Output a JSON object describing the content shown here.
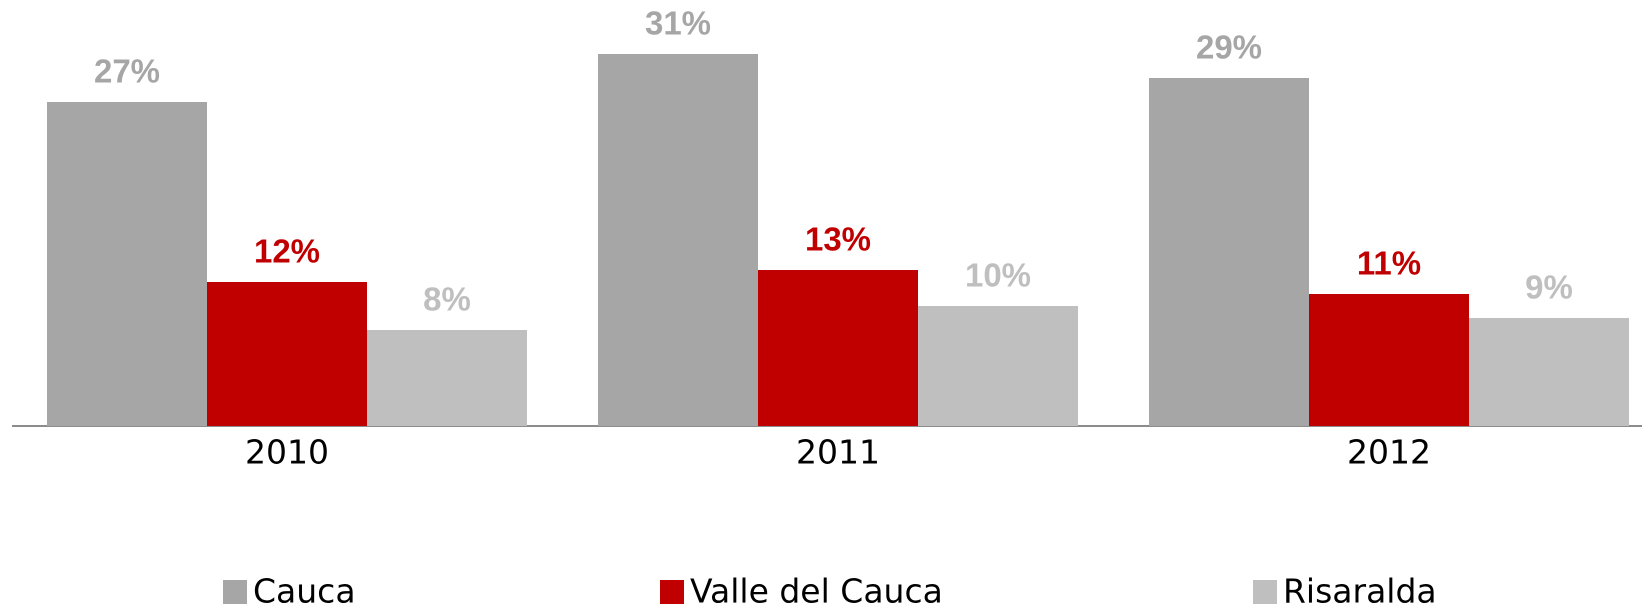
{
  "chart_data": {
    "type": "bar",
    "categories": [
      "2010",
      "2011",
      "2012"
    ],
    "series": [
      {
        "name": "Cauca",
        "color": "#a6a6a6",
        "values": [
          27,
          31,
          29
        ],
        "value_labels": [
          "27%",
          "31%",
          "29%"
        ]
      },
      {
        "name": "Valle del Cauca",
        "color": "#c00000",
        "values": [
          12,
          13,
          11
        ],
        "value_labels": [
          "12%",
          "13%",
          "11%"
        ]
      },
      {
        "name": "Risaralda",
        "color": "#bfbfbf",
        "values": [
          8,
          10,
          9
        ],
        "value_labels": [
          "8%",
          "10%",
          "9%"
        ]
      }
    ],
    "legend": "bottom"
  }
}
